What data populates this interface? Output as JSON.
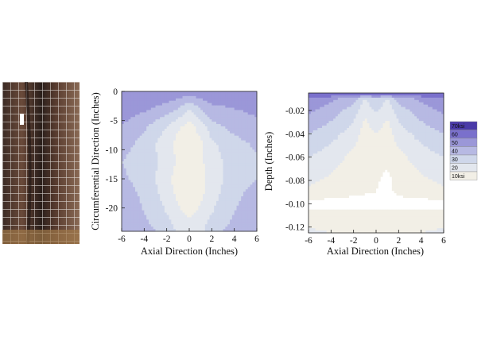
{
  "photo": {
    "label": "pipe-specimen-photo"
  },
  "chart_data": [
    {
      "type": "heatmap",
      "title": "",
      "xlabel": "Axial Direction (Inches)",
      "ylabel": "Circumferential  Direction (Inches)",
      "xlim": [
        -6,
        6
      ],
      "ylim": [
        -24,
        0
      ],
      "xticks": [
        "-6",
        "-4",
        "-2",
        "0",
        "2",
        "4",
        "6"
      ],
      "yticks": [
        "0",
        "-5",
        "-10",
        "-15",
        "-20"
      ],
      "x": [
        -6,
        -4,
        -2,
        -1,
        0,
        1,
        2,
        4,
        6
      ],
      "y": [
        0,
        -3,
        -6,
        -9,
        -12,
        -15,
        -18,
        -21,
        -24
      ],
      "z_ksi": [
        [
          60,
          58,
          60,
          58,
          55,
          58,
          56,
          55,
          58
        ],
        [
          55,
          52,
          45,
          40,
          30,
          40,
          48,
          50,
          52
        ],
        [
          50,
          42,
          30,
          22,
          16,
          24,
          36,
          44,
          48
        ],
        [
          45,
          36,
          24,
          16,
          14,
          18,
          28,
          36,
          42
        ],
        [
          40,
          34,
          28,
          18,
          12,
          18,
          26,
          34,
          38
        ],
        [
          42,
          36,
          24,
          14,
          14,
          16,
          24,
          36,
          40
        ],
        [
          46,
          38,
          26,
          18,
          16,
          18,
          26,
          38,
          44
        ],
        [
          48,
          40,
          30,
          22,
          18,
          22,
          30,
          40,
          46
        ],
        [
          50,
          44,
          36,
          28,
          24,
          28,
          36,
          44,
          48
        ]
      ]
    },
    {
      "type": "heatmap",
      "title": "",
      "xlabel": "Axial Direction (Inches)",
      "ylabel": "Depth (Inches)",
      "xlim": [
        -6,
        6
      ],
      "ylim": [
        -0.125,
        -0.005
      ],
      "xticks": [
        "-6",
        "-4",
        "-2",
        "0",
        "2",
        "4",
        "6"
      ],
      "yticks": [
        "-0.02",
        "-0.04",
        "-0.06",
        "-0.08",
        "-0.10",
        "-0.12"
      ],
      "x": [
        -6,
        -4,
        -2,
        -1,
        0,
        1,
        2,
        4,
        6
      ],
      "y": [
        -0.005,
        -0.01,
        -0.02,
        -0.04,
        -0.06,
        -0.08,
        -0.09,
        -0.1,
        -0.11,
        -0.125
      ],
      "z_ksi": [
        [
          72,
          72,
          72,
          72,
          72,
          72,
          72,
          72,
          72
        ],
        [
          60,
          52,
          45,
          30,
          40,
          30,
          45,
          52,
          60
        ],
        [
          52,
          45,
          35,
          22,
          32,
          22,
          35,
          45,
          52
        ],
        [
          40,
          34,
          25,
          15,
          20,
          15,
          25,
          34,
          40
        ],
        [
          30,
          25,
          17,
          12,
          12,
          12,
          17,
          25,
          30
        ],
        [
          22,
          18,
          13,
          11,
          11,
          8,
          13,
          18,
          22
        ],
        [
          18,
          15,
          12,
          11,
          10,
          8,
          12,
          15,
          18
        ],
        [
          6,
          6,
          6,
          6,
          6,
          6,
          6,
          6,
          6
        ],
        [
          14,
          14,
          13,
          13,
          13,
          13,
          13,
          14,
          14
        ],
        [
          22,
          20,
          18,
          16,
          16,
          16,
          18,
          20,
          22
        ]
      ],
      "legend": {
        "placement": "right",
        "entries": [
          "70ksi",
          "60",
          "50",
          "40",
          "30",
          "20",
          "10ksi"
        ],
        "colors": [
          "#4a3aa8",
          "#7a70cc",
          "#9b97d8",
          "#b7b9e3",
          "#cfd7ea",
          "#e3e7ee",
          "#f2efe6"
        ]
      }
    }
  ],
  "colors": {
    "band_70": "#4a3aa8",
    "band_60": "#7a70cc",
    "band_50": "#9b97d8",
    "band_40": "#b7b9e3",
    "band_30": "#cfd7ea",
    "band_20": "#e3e7ee",
    "band_10": "#f2efe6",
    "below_10": "#ffffff"
  }
}
